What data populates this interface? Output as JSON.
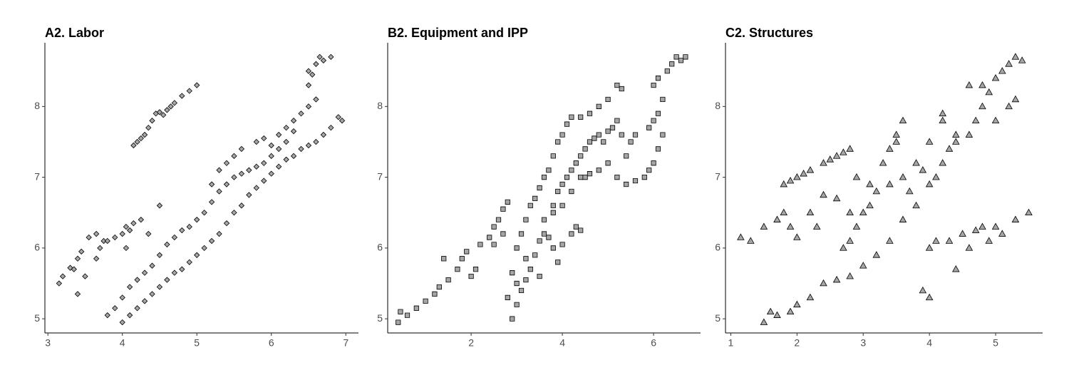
{
  "chart_data": [
    {
      "type": "scatter",
      "title": "A2. Labor",
      "marker": "diamond",
      "color": "#a6a6a6",
      "xlim": [
        2.96,
        7.17
      ],
      "ylim": [
        4.8,
        8.9
      ],
      "xticks": [
        3,
        4,
        5,
        6,
        7
      ],
      "yticks": [
        5,
        6,
        7,
        8
      ],
      "x": [
        4.15,
        4.2,
        4.25,
        4.3,
        4.35,
        4.4,
        4.45,
        4.5,
        4.55,
        4.6,
        4.65,
        4.7,
        4.8,
        4.9,
        5.0,
        3.15,
        3.2,
        3.3,
        3.35,
        3.4,
        3.45,
        3.5,
        3.4,
        3.55,
        3.65,
        3.7,
        3.75,
        3.8,
        3.9,
        4.0,
        4.05,
        4.1,
        4.15,
        4.05,
        4.25,
        4.35,
        4.5,
        3.65,
        3.8,
        3.9,
        4.0,
        4.1,
        4.2,
        4.3,
        4.4,
        4.5,
        4.6,
        4.7,
        4.8,
        4.9,
        5.0,
        5.1,
        5.2,
        5.3,
        5.4,
        5.5,
        5.6,
        5.7,
        5.8,
        5.9,
        6.0,
        6.1,
        6.2,
        6.3,
        5.2,
        5.3,
        5.4,
        5.5,
        5.6,
        5.8,
        5.9,
        6.0,
        6.1,
        6.2,
        6.3,
        6.4,
        6.5,
        6.6,
        4.0,
        4.1,
        4.2,
        4.3,
        4.4,
        4.5,
        4.6,
        4.7,
        4.8,
        4.9,
        5.0,
        5.1,
        5.2,
        5.3,
        5.4,
        5.5,
        5.6,
        5.7,
        5.8,
        5.9,
        6.0,
        6.1,
        6.2,
        6.3,
        6.4,
        6.5,
        6.6,
        6.7,
        6.8,
        6.9,
        6.95,
        6.5,
        6.55,
        6.6,
        6.65,
        6.7,
        6.8,
        6.5
      ],
      "values": [
        7.45,
        7.5,
        7.55,
        7.6,
        7.7,
        7.8,
        7.9,
        7.92,
        7.88,
        7.95,
        8.0,
        8.05,
        8.15,
        8.22,
        8.3,
        5.5,
        5.6,
        5.72,
        5.7,
        5.85,
        5.95,
        5.6,
        5.35,
        6.15,
        6.2,
        6.0,
        6.1,
        6.1,
        6.15,
        6.2,
        6.3,
        6.25,
        6.35,
        6.0,
        6.4,
        6.2,
        6.6,
        5.85,
        5.05,
        5.15,
        5.3,
        5.45,
        5.55,
        5.65,
        5.75,
        5.9,
        6.05,
        6.15,
        6.25,
        6.3,
        6.4,
        6.5,
        6.65,
        6.8,
        6.9,
        7.0,
        7.05,
        7.1,
        7.15,
        7.2,
        7.3,
        7.4,
        7.5,
        7.65,
        6.9,
        7.1,
        7.2,
        7.3,
        7.4,
        7.5,
        7.55,
        7.45,
        7.6,
        7.7,
        7.8,
        7.9,
        8.0,
        8.1,
        4.95,
        5.05,
        5.15,
        5.25,
        5.35,
        5.45,
        5.55,
        5.65,
        5.7,
        5.8,
        5.9,
        6.0,
        6.1,
        6.2,
        6.35,
        6.5,
        6.6,
        6.75,
        6.85,
        6.95,
        7.05,
        7.15,
        7.25,
        7.3,
        7.4,
        7.45,
        7.5,
        7.6,
        7.7,
        7.85,
        7.8,
        8.3,
        8.45,
        8.6,
        8.7,
        8.65,
        8.7,
        8.5
      ]
    },
    {
      "type": "scatter",
      "title": "B2. Equipment and IPP",
      "marker": "square",
      "color": "#a6a6a6",
      "xlim": [
        0.17,
        7.03
      ],
      "ylim": [
        4.8,
        8.9
      ],
      "xticks": [
        2,
        4,
        6
      ],
      "yticks": [
        5,
        6,
        7,
        8
      ],
      "x": [
        0.4,
        0.45,
        0.6,
        0.8,
        1.0,
        1.2,
        1.3,
        1.5,
        1.7,
        1.8,
        1.9,
        1.4,
        2.0,
        2.1,
        2.2,
        2.4,
        2.5,
        2.6,
        2.7,
        2.8,
        2.5,
        2.7,
        3.0,
        3.1,
        3.2,
        3.3,
        3.4,
        3.5,
        3.6,
        3.7,
        3.8,
        3.9,
        4.0,
        4.1,
        4.2,
        4.4,
        4.6,
        4.8,
        5.0,
        5.2,
        5.3,
        3.8,
        3.9,
        4.0,
        4.1,
        4.2,
        4.3,
        4.4,
        4.5,
        4.6,
        4.7,
        4.8,
        4.9,
        5.0,
        5.1,
        5.2,
        3.6,
        3.8,
        4.0,
        4.2,
        4.4,
        4.5,
        4.6,
        4.8,
        5.0,
        5.2,
        5.4,
        5.5,
        5.6,
        5.3,
        2.9,
        3.0,
        3.1,
        3.2,
        3.3,
        3.4,
        3.5,
        3.6,
        3.7,
        3.8,
        3.9,
        3.2,
        3.0,
        2.8,
        2.9,
        4.0,
        4.2,
        4.3,
        4.4,
        3.5,
        5.4,
        5.6,
        5.8,
        5.9,
        6.0,
        6.1,
        6.2,
        5.9,
        6.0,
        6.1,
        6.2,
        6.0,
        6.3,
        6.4,
        6.5,
        6.6,
        6.7,
        6.1
      ],
      "values": [
        4.95,
        5.1,
        5.05,
        5.15,
        5.25,
        5.35,
        5.45,
        5.55,
        5.7,
        5.85,
        5.95,
        5.85,
        5.6,
        5.7,
        6.05,
        6.15,
        6.3,
        6.4,
        6.55,
        6.65,
        6.05,
        6.2,
        6.0,
        6.2,
        6.4,
        6.6,
        6.7,
        6.85,
        7.0,
        7.1,
        7.3,
        7.5,
        7.6,
        7.75,
        7.85,
        7.85,
        7.9,
        8.0,
        8.1,
        8.3,
        8.25,
        6.6,
        6.8,
        6.9,
        7.0,
        7.1,
        7.2,
        7.3,
        7.4,
        7.5,
        7.55,
        7.6,
        7.5,
        7.65,
        7.7,
        7.8,
        6.4,
        6.5,
        6.6,
        6.8,
        7.0,
        7.0,
        7.05,
        7.1,
        7.2,
        7.0,
        7.3,
        7.5,
        7.6,
        7.6,
        5.0,
        5.2,
        5.4,
        5.55,
        5.7,
        5.9,
        6.1,
        6.2,
        6.15,
        6.0,
        5.8,
        5.85,
        5.5,
        5.3,
        5.65,
        6.05,
        6.2,
        6.3,
        6.25,
        5.6,
        6.9,
        6.95,
        7.0,
        7.1,
        7.2,
        7.4,
        7.6,
        7.7,
        7.8,
        7.9,
        8.1,
        8.3,
        8.5,
        8.6,
        8.7,
        8.65,
        8.7,
        8.4
      ]
    },
    {
      "type": "scatter",
      "title": "C2. Structures",
      "marker": "triangle",
      "color": "#a6a6a6",
      "xlim": [
        0.92,
        5.71
      ],
      "ylim": [
        4.8,
        8.9
      ],
      "xticks": [
        1,
        2,
        3,
        4,
        5
      ],
      "yticks": [
        5,
        6,
        7,
        8
      ],
      "x": [
        1.8,
        1.9,
        2.0,
        2.1,
        2.2,
        2.4,
        2.5,
        2.6,
        2.7,
        2.8,
        2.9,
        3.1,
        3.3,
        3.4,
        3.5,
        3.6,
        3.5,
        1.15,
        1.3,
        1.5,
        1.7,
        1.8,
        1.9,
        2.0,
        2.2,
        2.3,
        1.6,
        1.7,
        1.9,
        1.5,
        2.4,
        2.6,
        2.8,
        2.0,
        2.2,
        2.4,
        2.6,
        2.8,
        3.0,
        3.2,
        3.4,
        3.6,
        3.8,
        4.0,
        4.1,
        4.2,
        4.3,
        4.4,
        4.6,
        4.7,
        4.8,
        4.9,
        5.0,
        5.1,
        5.2,
        5.3,
        5.4,
        2.7,
        2.8,
        2.9,
        3.0,
        3.1,
        3.2,
        3.4,
        3.6,
        3.8,
        4.0,
        4.2,
        4.2,
        4.4,
        4.6,
        4.8,
        5.0,
        5.2,
        5.3,
        3.7,
        3.9,
        3.9,
        4.0,
        4.0,
        4.1,
        4.3,
        4.5,
        4.7,
        4.8,
        5.0,
        5.1,
        5.3,
        5.5,
        4.6,
        4.4,
        4.9
      ],
      "values": [
        6.9,
        6.95,
        7.0,
        7.05,
        7.1,
        7.2,
        7.25,
        7.3,
        7.35,
        7.4,
        7.0,
        6.9,
        7.2,
        7.4,
        7.6,
        7.8,
        7.5,
        6.15,
        6.1,
        6.3,
        6.4,
        6.5,
        6.3,
        6.15,
        6.5,
        6.3,
        5.1,
        5.05,
        5.1,
        4.95,
        6.75,
        6.7,
        6.5,
        5.2,
        5.3,
        5.5,
        5.55,
        5.6,
        5.75,
        5.9,
        6.1,
        6.4,
        6.6,
        6.9,
        7.0,
        7.2,
        7.4,
        7.5,
        7.6,
        7.8,
        8.0,
        8.2,
        8.4,
        8.5,
        8.6,
        8.7,
        8.65,
        6.0,
        6.1,
        6.3,
        6.5,
        6.6,
        6.8,
        6.9,
        7.0,
        7.2,
        7.5,
        7.8,
        7.9,
        7.6,
        8.3,
        8.3,
        7.8,
        8.0,
        8.1,
        6.8,
        7.1,
        5.4,
        5.3,
        6.0,
        6.1,
        6.1,
        6.2,
        6.25,
        6.3,
        6.3,
        6.2,
        6.4,
        6.5,
        6.0,
        5.7,
        6.1
      ]
    }
  ]
}
